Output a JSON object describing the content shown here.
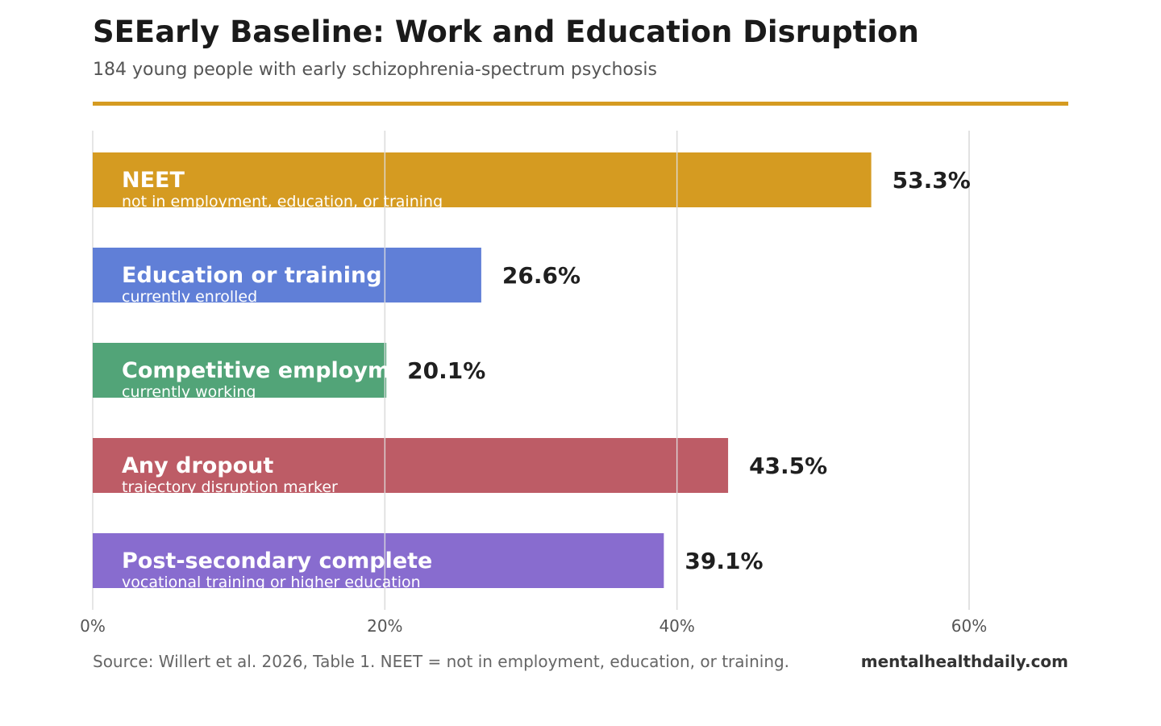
{
  "header": {
    "title": "SEEarly Baseline: Work and Education Disruption",
    "subtitle": "184 young people with early schizophrenia-spectrum psychosis"
  },
  "footer": {
    "source": "Source: Willert et al. 2026, Table 1. NEET = not in employment, education, or training.",
    "brand": "mentalhealthdaily.com"
  },
  "colors": {
    "accent": "#d59b21",
    "gridline": "#dddddd"
  },
  "chart_data": {
    "type": "bar",
    "orientation": "horizontal",
    "categories": [
      "NEET",
      "Education or training",
      "Competitive employment",
      "Any dropout",
      "Post-secondary complete"
    ],
    "sublabels": [
      "not in employment, education, or training",
      "currently enrolled",
      "currently working",
      "trajectory disruption marker",
      "vocational training or higher education"
    ],
    "values": [
      53.3,
      26.6,
      20.1,
      43.5,
      39.1
    ],
    "value_labels": [
      "53.3%",
      "26.6%",
      "20.1%",
      "43.5%",
      "39.1%"
    ],
    "colors": [
      "#d59b21",
      "#607fd7",
      "#52a478",
      "#bd5c66",
      "#886ccf"
    ],
    "xlim": [
      0,
      60
    ],
    "xticks": [
      0,
      20,
      40,
      60
    ],
    "xtick_labels": [
      "0%",
      "20%",
      "40%",
      "60%"
    ],
    "grid": true
  }
}
